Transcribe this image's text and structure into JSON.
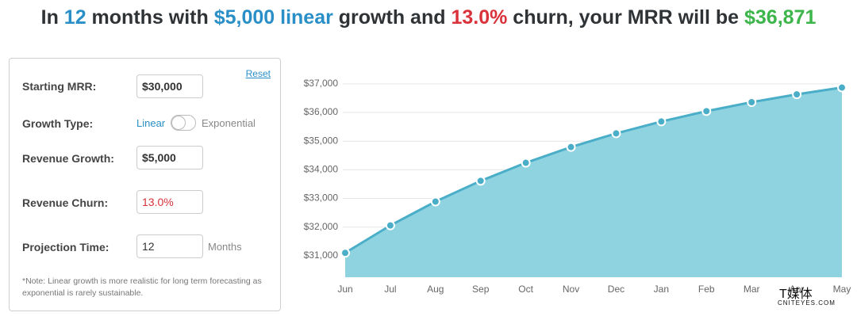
{
  "headline": {
    "parts": [
      {
        "text": "In ",
        "color": "#2f3336"
      },
      {
        "text": "12",
        "color": "#2a8fc7"
      },
      {
        "text": " months with ",
        "color": "#2f3336"
      },
      {
        "text": "$5,000 linear",
        "color": "#2a8fc7"
      },
      {
        "text": " growth and ",
        "color": "#2f3336"
      },
      {
        "text": "13.0%",
        "color": "#d9323a"
      },
      {
        "text": " churn, your MRR will be ",
        "color": "#2f3336"
      },
      {
        "text": "$36,871",
        "color": "#3cb54a"
      }
    ]
  },
  "form": {
    "reset": "Reset",
    "starting_mrr": {
      "label": "Starting MRR:",
      "value": "$30,000"
    },
    "growth_type": {
      "label": "Growth Type:",
      "option_a": "Linear",
      "option_b": "Exponential"
    },
    "revenue_growth": {
      "label": "Revenue Growth:",
      "value": "$5,000"
    },
    "revenue_churn": {
      "label": "Revenue Churn:",
      "value": "13.0%"
    },
    "projection_time": {
      "label": "Projection Time:",
      "value": "12",
      "unit": "Months"
    },
    "note": "*Note: Linear growth is more realistic for long term forecasting as exponential is rarely sustainable."
  },
  "watermark": {
    "brand": "T媒体",
    "site": "CNITEYES.COM"
  },
  "chart_data": {
    "type": "area",
    "categories": [
      "Jun",
      "Jul",
      "Aug",
      "Sep",
      "Oct",
      "Nov",
      "Dec",
      "Jan",
      "Feb",
      "Mar",
      "Apr",
      "May"
    ],
    "values": [
      31100,
      32057,
      32890,
      33614,
      34244,
      34793,
      35270,
      35685,
      36046,
      36360,
      36633,
      36871
    ],
    "color": "#8fd3e0",
    "line_color": "#4aaec8",
    "ylim": [
      30250,
      37300
    ],
    "yticks": [
      {
        "value": 31000,
        "label": "$31,000"
      },
      {
        "value": 32000,
        "label": "$32,000"
      },
      {
        "value": 33000,
        "label": "$33,000"
      },
      {
        "value": 34000,
        "label": "$34,000"
      },
      {
        "value": 35000,
        "label": "$35,000"
      },
      {
        "value": 36000,
        "label": "$36,000"
      },
      {
        "value": 37000,
        "label": "$37,000"
      }
    ],
    "grid": true
  }
}
